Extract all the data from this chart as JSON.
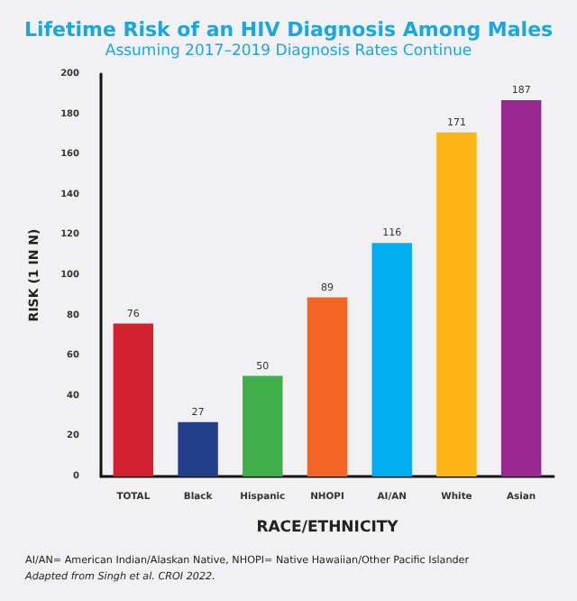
{
  "chart_data": {
    "type": "bar",
    "title": "Lifetime Risk of an HIV Diagnosis Among Males",
    "subtitle": "Assuming 2017–2019 Diagnosis Rates Continue",
    "xlabel": "RACE/ETHNICITY",
    "ylabel": "RISK (1 IN N)",
    "categories": [
      "TOTAL",
      "Black",
      "Hispanic",
      "NHOPI",
      "AI/AN",
      "White",
      "Asian"
    ],
    "values": [
      76,
      27,
      50,
      89,
      116,
      171,
      187
    ],
    "colors": [
      "#d2202f",
      "#233e8b",
      "#3fae49",
      "#f26522",
      "#00aeef",
      "#fdb515",
      "#9b2790"
    ],
    "ylim": [
      0,
      200
    ],
    "yticks": [
      0,
      20,
      40,
      60,
      80,
      100,
      120,
      140,
      160,
      180,
      200
    ],
    "grid": false,
    "data_labels": true,
    "annotations": [
      "AI/AN= American Indian/Alaskan Native, NHOPI= Native Hawaiian/Other Pacific Islander",
      "Adapted from Singh et al. CROI 2022."
    ]
  }
}
